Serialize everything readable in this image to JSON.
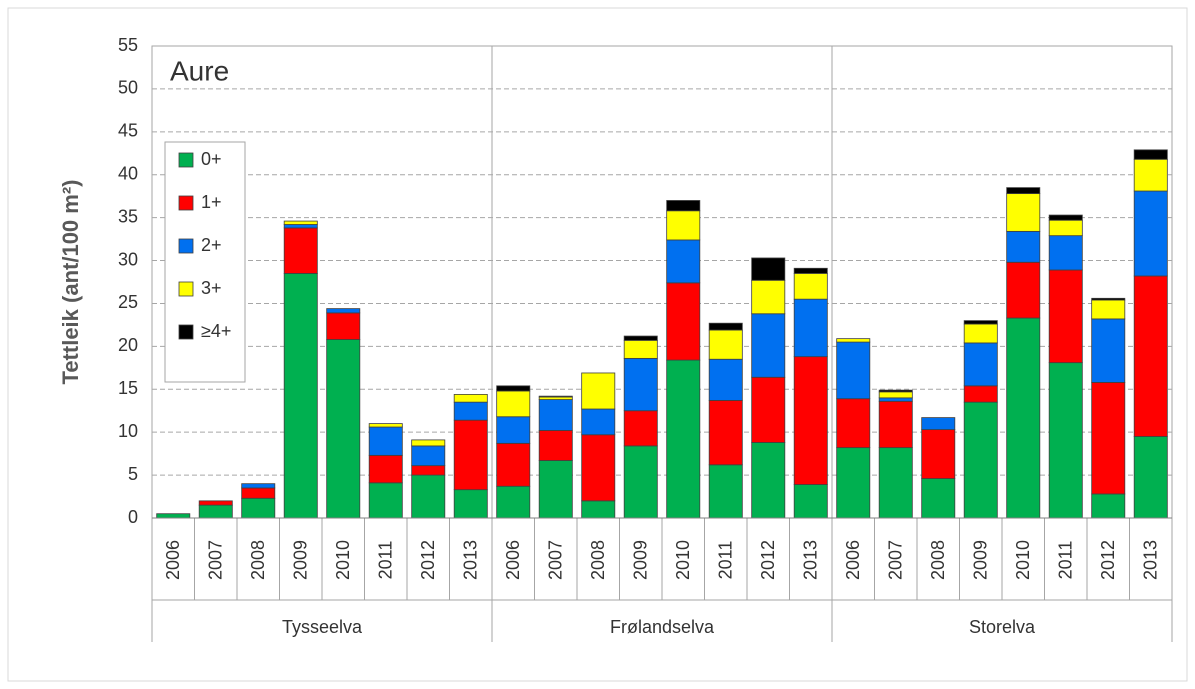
{
  "chart_data": {
    "type": "stacked-bar",
    "annotation": "Aure",
    "ylabel": "Tettleik (ant/100 m²)",
    "categories": [
      "2006",
      "2007",
      "2008",
      "2009",
      "2010",
      "2011",
      "2012",
      "2013",
      "2006",
      "2007",
      "2008",
      "2009",
      "2010",
      "2011",
      "2012",
      "2013",
      "2006",
      "2007",
      "2008",
      "2009",
      "2010",
      "2011",
      "2012",
      "2013"
    ],
    "groups": [
      "Tysseelva",
      "Frølandselva",
      "Storelva"
    ],
    "series": [
      {
        "name": "0+",
        "color": "#00b050",
        "values": [
          0.5,
          1.5,
          2.3,
          28.5,
          20.8,
          4.1,
          5.0,
          3.3,
          3.7,
          6.7,
          2.0,
          8.4,
          18.4,
          6.2,
          8.8,
          3.9,
          8.2,
          8.2,
          4.6,
          13.5,
          23.3,
          18.1,
          2.8,
          9.5
        ]
      },
      {
        "name": "1+",
        "color": "#ff0000",
        "values": [
          0,
          0.5,
          1.2,
          5.3,
          3.1,
          3.2,
          1.1,
          8.1,
          5.0,
          3.5,
          7.7,
          4.1,
          9.0,
          7.5,
          7.6,
          14.9,
          5.7,
          5.4,
          5.7,
          1.9,
          6.5,
          10.8,
          13.0,
          18.7
        ]
      },
      {
        "name": "2+",
        "color": "#0070f0",
        "values": [
          0,
          0,
          0.5,
          0.4,
          0.5,
          3.3,
          2.3,
          2.1,
          3.1,
          3.6,
          3.0,
          6.1,
          5.0,
          4.8,
          7.4,
          6.7,
          6.6,
          0.4,
          1.4,
          5.0,
          3.6,
          4.0,
          7.4,
          9.9
        ]
      },
      {
        "name": "3+",
        "color": "#ffff00",
        "values": [
          0,
          0,
          0,
          0.4,
          0,
          0.4,
          0.7,
          0.9,
          3.0,
          0.3,
          4.2,
          2.1,
          3.4,
          3.4,
          3.9,
          3.0,
          0.4,
          0.7,
          0,
          2.2,
          4.4,
          1.8,
          2.2,
          3.7
        ]
      },
      {
        "name": "≥4+",
        "color": "#000000",
        "values": [
          0,
          0,
          0,
          0,
          0,
          0,
          0,
          0,
          0.6,
          0.1,
          0,
          0.5,
          1.2,
          0.8,
          2.6,
          0.6,
          0,
          0.2,
          0,
          0.4,
          0.7,
          0.6,
          0.2,
          1.1
        ]
      }
    ],
    "ylim": [
      0,
      55
    ],
    "yticks": [
      0,
      5,
      10,
      15,
      20,
      25,
      30,
      35,
      40,
      45,
      50,
      55
    ],
    "grid": true,
    "legend": "upper-left"
  }
}
